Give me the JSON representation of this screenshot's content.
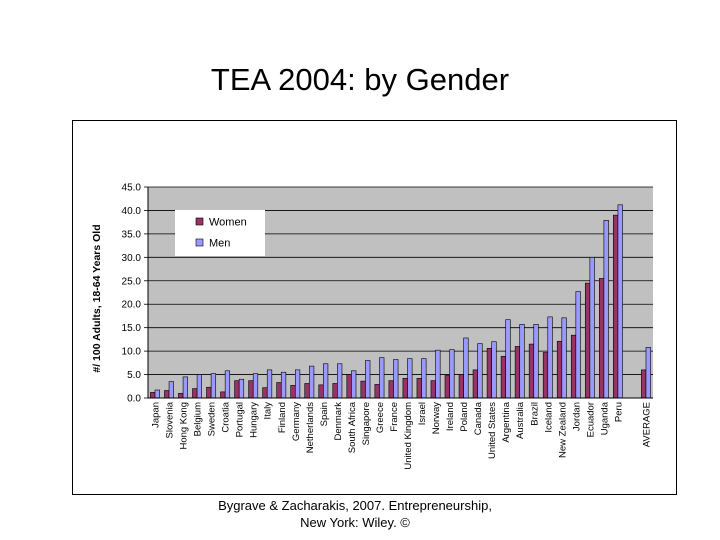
{
  "slide": {
    "title": "TEA 2004: by Gender",
    "caption_line1": "Bygrave & Zacharakis, 2007.  Entrepreneurship,",
    "caption_line2": "New York: Wiley.  ©"
  },
  "colors": {
    "women": "#993366",
    "men": "#9999ff",
    "plot_bg": "#c0c0c0",
    "legend_bg": "#ffffff"
  },
  "chart_data": {
    "type": "bar",
    "title": "",
    "ylabel": "#/ 100 Adults, 18-64 Years Old",
    "xlabel": "",
    "ylim": [
      0,
      45
    ],
    "yticks": [
      0,
      5,
      10,
      15,
      20,
      25,
      30,
      35,
      40,
      45
    ],
    "ytick_labels": [
      "0.0",
      "5.0",
      "10.0",
      "15.0",
      "20.0",
      "25.0",
      "30.0",
      "35.0",
      "40.0",
      "45.0"
    ],
    "legend_position": "top-left",
    "categories": [
      "Japan",
      "Slovenia",
      "Hong Kong",
      "Belgium",
      "Sweden",
      "Croatia",
      "Portugal",
      "Hungary",
      "Italy",
      "Finland",
      "Germany",
      "Netherlands",
      "Spain",
      "Denmark",
      "South Africa",
      "Singapore",
      "Greece",
      "France",
      "United Kingdom",
      "Israel",
      "Norway",
      "Ireland",
      "Poland",
      "Canada",
      "United States",
      "Argentina",
      "Australia",
      "Brazil",
      "Iceland",
      "New Zealand",
      "Jordan",
      "Ecuador",
      "Uganda",
      "Peru",
      "",
      "AVERAGE"
    ],
    "series": [
      {
        "name": "Women",
        "values": [
          1.2,
          1.6,
          1.0,
          2.0,
          2.3,
          1.3,
          3.7,
          3.7,
          2.2,
          3.3,
          2.7,
          3.1,
          2.8,
          3.1,
          5.0,
          3.6,
          2.9,
          3.7,
          4.2,
          4.2,
          3.7,
          4.8,
          5.0,
          6.0,
          10.6,
          8.9,
          11.0,
          11.5,
          9.7,
          12.1,
          13.4,
          24.5,
          25.5,
          39.0,
          null,
          6.0
        ]
      },
      {
        "name": "Men",
        "values": [
          1.7,
          3.5,
          4.5,
          5.0,
          5.2,
          5.8,
          4.0,
          5.2,
          6.0,
          5.5,
          6.0,
          6.8,
          7.3,
          7.3,
          5.8,
          8.0,
          8.6,
          8.2,
          8.4,
          8.4,
          10.2,
          10.3,
          12.8,
          11.6,
          12.0,
          16.7,
          15.7,
          15.7,
          17.3,
          17.1,
          22.7,
          30.0,
          37.9,
          41.2,
          null,
          10.8
        ]
      }
    ]
  }
}
